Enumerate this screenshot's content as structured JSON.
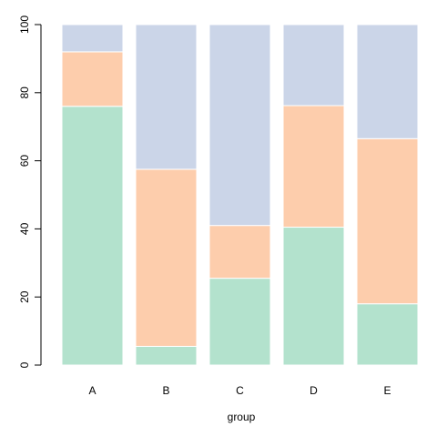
{
  "chart_data": {
    "type": "bar",
    "stacked": true,
    "categories": [
      "A",
      "B",
      "C",
      "D",
      "E"
    ],
    "series": [
      {
        "values": [
          76,
          5.5,
          25.5,
          40.5,
          18
        ],
        "color": "#b3e2cd"
      },
      {
        "values": [
          16,
          52,
          15.5,
          35.7,
          48.5
        ],
        "color": "#fdcdac"
      },
      {
        "values": [
          8,
          42.5,
          59,
          23.8,
          33.5
        ],
        "color": "#cbd5e8"
      }
    ],
    "xlabel": "group",
    "ylabel": "",
    "title": "",
    "ylim": [
      0,
      100
    ],
    "yticks": [
      0,
      20,
      40,
      60,
      80,
      100
    ],
    "grid": false,
    "legend": "none"
  }
}
